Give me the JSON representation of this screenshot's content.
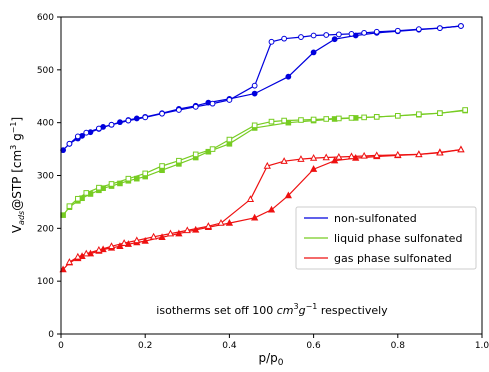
{
  "chart_data": {
    "type": "line",
    "xlabel": "p/p",
    "xlabel_sub": "0",
    "ylabel": "V",
    "ylabel_sub": "ads",
    "ylabel_rest": "@STP [cm",
    "ylabel_sup1": "3",
    "ylabel_mid": " g",
    "ylabel_sup2": "−1",
    "ylabel_end": "]",
    "xlim": [
      0,
      1.0
    ],
    "ylim": [
      0,
      600
    ],
    "xticks": [
      "0",
      "0.2",
      "0.4",
      "0.6",
      "0.8",
      "1.0"
    ],
    "xtick_values": [
      0,
      0.2,
      0.4,
      0.6,
      0.8,
      1.0
    ],
    "yticks": [
      "0",
      "100",
      "200",
      "300",
      "400",
      "500",
      "600"
    ],
    "ytick_values": [
      0,
      100,
      200,
      300,
      400,
      500,
      600
    ],
    "grid": false,
    "legend_position": "center-right",
    "annotation": {
      "pre": "isotherms set off 100 ",
      "unit_base1": "cm",
      "unit_sup1": "3",
      "unit_base2": "g",
      "unit_sup2": "−1",
      "post": " respectively"
    },
    "series": [
      {
        "name": "non-sulfonated",
        "color": "#0000dd",
        "marker": "circle",
        "adsorption": {
          "x": [
            0.005,
            0.02,
            0.04,
            0.05,
            0.07,
            0.09,
            0.1,
            0.12,
            0.14,
            0.16,
            0.18,
            0.2,
            0.24,
            0.28,
            0.32,
            0.35,
            0.4,
            0.46,
            0.54,
            0.6,
            0.65,
            0.7,
            0.75,
            0.8,
            0.85,
            0.9,
            0.95
          ],
          "y": [
            348,
            360,
            370,
            375,
            382,
            388,
            392,
            396,
            401,
            405,
            408,
            411,
            418,
            426,
            432,
            438,
            445,
            455,
            487,
            533,
            558,
            565,
            570,
            573,
            576,
            579,
            583
          ]
        },
        "desorption": {
          "x": [
            0.95,
            0.9,
            0.85,
            0.8,
            0.75,
            0.72,
            0.69,
            0.66,
            0.63,
            0.6,
            0.57,
            0.53,
            0.5,
            0.46,
            0.4,
            0.36,
            0.32,
            0.28,
            0.24,
            0.2,
            0.16,
            0.12,
            0.09,
            0.06,
            0.04,
            0.02
          ],
          "y": [
            583,
            579,
            577,
            574,
            572,
            570,
            568,
            567,
            566,
            565,
            562,
            559,
            553,
            470,
            443,
            436,
            430,
            424,
            417,
            410,
            404,
            396,
            389,
            381,
            374,
            360
          ]
        }
      },
      {
        "name": "liquid phase sulfonated",
        "color": "#77cc22",
        "marker": "square",
        "adsorption": {
          "x": [
            0.005,
            0.02,
            0.04,
            0.05,
            0.07,
            0.09,
            0.1,
            0.12,
            0.14,
            0.16,
            0.18,
            0.2,
            0.24,
            0.28,
            0.32,
            0.35,
            0.4,
            0.46,
            0.54,
            0.6,
            0.65,
            0.7,
            0.75,
            0.8,
            0.85,
            0.9,
            0.96
          ],
          "y": [
            225,
            240,
            252,
            257,
            265,
            272,
            276,
            280,
            285,
            290,
            294,
            298,
            310,
            322,
            334,
            345,
            360,
            390,
            400,
            404,
            407,
            409,
            411,
            413,
            415,
            418,
            423
          ]
        },
        "desorption": {
          "x": [
            0.96,
            0.9,
            0.85,
            0.8,
            0.75,
            0.72,
            0.69,
            0.66,
            0.63,
            0.6,
            0.57,
            0.53,
            0.5,
            0.46,
            0.4,
            0.36,
            0.32,
            0.28,
            0.24,
            0.2,
            0.16,
            0.12,
            0.09,
            0.06,
            0.04,
            0.02
          ],
          "y": [
            424,
            418,
            416,
            413,
            411,
            410,
            409,
            408,
            407,
            406,
            405,
            404,
            402,
            395,
            368,
            350,
            340,
            328,
            318,
            304,
            294,
            284,
            277,
            267,
            256,
            242
          ]
        }
      },
      {
        "name": "gas phase sulfonated",
        "color": "#ee1111",
        "marker": "triangle",
        "adsorption": {
          "x": [
            0.005,
            0.02,
            0.04,
            0.05,
            0.07,
            0.09,
            0.1,
            0.12,
            0.14,
            0.16,
            0.18,
            0.2,
            0.24,
            0.28,
            0.32,
            0.35,
            0.4,
            0.46,
            0.5,
            0.54,
            0.6,
            0.65,
            0.7,
            0.75,
            0.8,
            0.85,
            0.9,
            0.95
          ],
          "y": [
            122,
            135,
            143,
            147,
            152,
            157,
            160,
            163,
            166,
            170,
            173,
            176,
            183,
            190,
            197,
            202,
            210,
            220,
            235,
            262,
            312,
            328,
            333,
            336,
            338,
            340,
            344,
            349
          ]
        },
        "desorption": {
          "x": [
            0.95,
            0.9,
            0.85,
            0.8,
            0.75,
            0.72,
            0.69,
            0.66,
            0.63,
            0.6,
            0.57,
            0.53,
            0.49,
            0.45,
            0.38,
            0.35,
            0.3,
            0.26,
            0.22,
            0.18,
            0.15,
            0.12,
            0.09,
            0.06,
            0.04,
            0.02
          ],
          "y": [
            349,
            343,
            340,
            339,
            338,
            337,
            336,
            335,
            334,
            333,
            331,
            327,
            318,
            255,
            210,
            204,
            196,
            190,
            184,
            177,
            172,
            166,
            159,
            152,
            146,
            136
          ]
        }
      }
    ]
  }
}
